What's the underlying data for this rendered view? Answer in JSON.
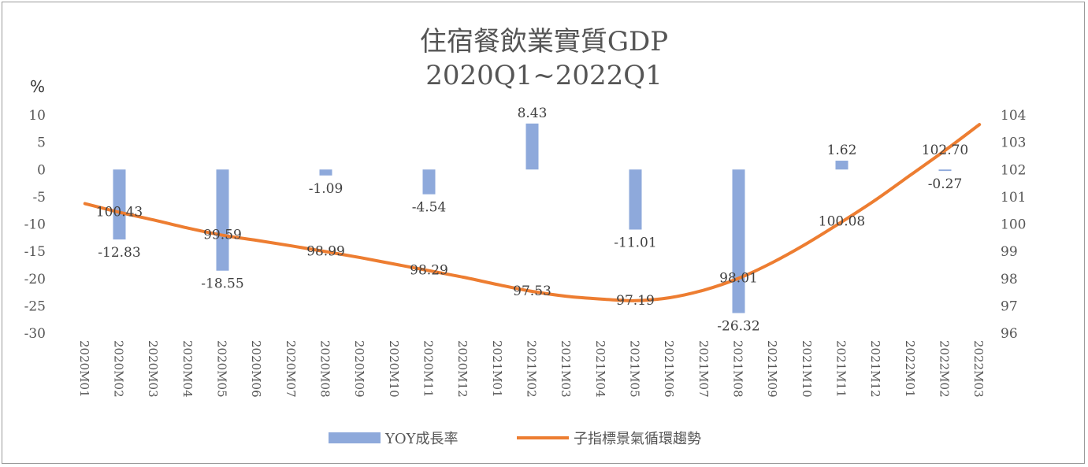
{
  "chart_data": {
    "type": "bar",
    "title": "住宿餐飲業實質GDP",
    "subtitle": "2020Q1~2022Q1",
    "ylabel_left": "%",
    "categories": [
      "2020M01",
      "2020M02",
      "2020M03",
      "2020M04",
      "2020M05",
      "2020M06",
      "2020M07",
      "2020M08",
      "2020M09",
      "2020M10",
      "2020M11",
      "2020M12",
      "2021M01",
      "2021M02",
      "2021M03",
      "2021M04",
      "2021M05",
      "2021M06",
      "2021M07",
      "2021M08",
      "2021M09",
      "2021M10",
      "2021M11",
      "2021M12",
      "2022M01",
      "2022M02",
      "2022M03"
    ],
    "ylim_left": [
      -30,
      10
    ],
    "yticks_left": [
      10,
      5,
      0,
      -5,
      -10,
      -15,
      -20,
      -25,
      -30
    ],
    "ylim_right": [
      96,
      104
    ],
    "yticks_right": [
      104,
      103,
      102,
      101,
      100,
      99,
      98,
      97,
      96
    ],
    "grid": false,
    "legend_position": "bottom",
    "series": [
      {
        "name": "YOY成長率",
        "type": "bar",
        "axis": "left",
        "color": "#8EA9DB",
        "values": [
          null,
          -12.83,
          null,
          null,
          -18.55,
          null,
          null,
          -1.09,
          null,
          null,
          -4.54,
          null,
          null,
          8.43,
          null,
          null,
          -11.01,
          null,
          null,
          -26.32,
          null,
          null,
          1.62,
          null,
          null,
          -0.27,
          null
        ],
        "labels": [
          null,
          "-12.83",
          null,
          null,
          "-18.55",
          null,
          null,
          "-1.09",
          null,
          null,
          "-4.54",
          null,
          null,
          "8.43",
          null,
          null,
          "-11.01",
          null,
          null,
          "-26.32",
          null,
          null,
          "1.62",
          null,
          null,
          "-0.27",
          null
        ]
      },
      {
        "name": "子指標景氣循環趨勢",
        "type": "line",
        "axis": "right",
        "color": "#ED7D31",
        "values": [
          100.75,
          100.43,
          100.15,
          99.85,
          99.59,
          99.4,
          99.2,
          98.99,
          98.77,
          98.53,
          98.29,
          98.05,
          97.78,
          97.53,
          97.35,
          97.25,
          97.19,
          97.3,
          97.58,
          98.01,
          98.6,
          99.3,
          100.08,
          100.9,
          101.8,
          102.7,
          103.65
        ],
        "labels": [
          null,
          "100.43",
          null,
          null,
          "99.59",
          null,
          null,
          "98.99",
          null,
          null,
          "98.29",
          null,
          null,
          "97.53",
          null,
          null,
          "97.19",
          null,
          null,
          "98.01",
          null,
          null,
          "100.08",
          null,
          null,
          "102.70",
          null
        ]
      }
    ]
  }
}
